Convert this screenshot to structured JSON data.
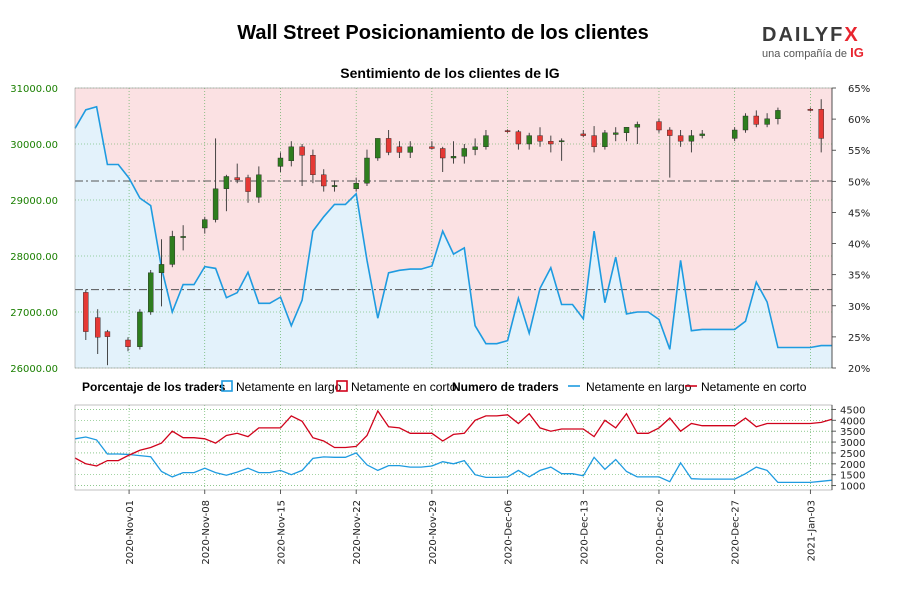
{
  "title": "Wall Street Posicionamiento de los clientes",
  "logo": {
    "brand_main": "DAILYF",
    "brand_x": "X",
    "tagline": "una compañía de",
    "tagline_brand": "IG"
  },
  "colors": {
    "price_axis": "#1a7f00",
    "long": "#1e9be0",
    "short": "#d0021b",
    "bg_long": "#e3f2fb",
    "bg_short": "#fbe1e3",
    "up_candle": "#2e7d1e",
    "down_candle": "#e53935",
    "wick": "#333333",
    "grid": "#4aa84a"
  },
  "chart_data": [
    {
      "type": "candlestick",
      "title": "Sentimiento de los clientes de IG",
      "y_left_ticks": [
        "26000.00",
        "27000.00",
        "28000.00",
        "29000.00",
        "30000.00",
        "31000.00"
      ],
      "y_left_range": [
        26000,
        31000
      ],
      "y_right_ticks": [
        "20%",
        "25%",
        "30%",
        "35%",
        "40%",
        "45%",
        "50%",
        "55%",
        "60%",
        "65%"
      ],
      "y_right_range": [
        20,
        65
      ],
      "x_tick_labels": [
        "2020-Nov-01",
        "2020-Nov-08",
        "2020-Nov-15",
        "2020-Nov-22",
        "2020-Nov-29",
        "2020-Dec-06",
        "2020-Dec-13",
        "2020-Dec-20",
        "2020-Dec-27",
        "2021-Jan-03"
      ],
      "x_tick_days": [
        5,
        12,
        19,
        26,
        33,
        40,
        47,
        54,
        61,
        68
      ],
      "reference_lines_price": [
        29340,
        27400
      ],
      "grid": true,
      "candles": [
        {
          "d": 1.0,
          "o": 27350,
          "h": 27400,
          "l": 26500,
          "c": 26650
        },
        {
          "d": 2.1,
          "o": 26900,
          "h": 27050,
          "l": 26250,
          "c": 26550
        },
        {
          "d": 3.0,
          "o": 26650,
          "h": 26680,
          "l": 26050,
          "c": 26560
        },
        {
          "d": 4.9,
          "o": 26500,
          "h": 26550,
          "l": 26300,
          "c": 26380
        },
        {
          "d": 6.0,
          "o": 26380,
          "h": 27050,
          "l": 26330,
          "c": 27000
        },
        {
          "d": 7.0,
          "o": 27000,
          "h": 27750,
          "l": 26950,
          "c": 27700
        },
        {
          "d": 8.0,
          "o": 27700,
          "h": 28300,
          "l": 27100,
          "c": 27850
        },
        {
          "d": 9.0,
          "o": 27850,
          "h": 28450,
          "l": 27800,
          "c": 28350
        },
        {
          "d": 10.0,
          "o": 28350,
          "h": 28550,
          "l": 28100,
          "c": 28350
        },
        {
          "d": 12.0,
          "o": 28500,
          "h": 28700,
          "l": 28400,
          "c": 28650
        },
        {
          "d": 13.0,
          "o": 28650,
          "h": 30100,
          "l": 28600,
          "c": 29200
        },
        {
          "d": 14.0,
          "o": 29200,
          "h": 29450,
          "l": 28800,
          "c": 29420
        },
        {
          "d": 15.0,
          "o": 29400,
          "h": 29650,
          "l": 29300,
          "c": 29360
        },
        {
          "d": 16.0,
          "o": 29400,
          "h": 29450,
          "l": 28950,
          "c": 29150
        },
        {
          "d": 17.0,
          "o": 29050,
          "h": 29600,
          "l": 28950,
          "c": 29450
        },
        {
          "d": 19.0,
          "o": 29600,
          "h": 29850,
          "l": 29500,
          "c": 29750
        },
        {
          "d": 20.0,
          "o": 29700,
          "h": 30050,
          "l": 29600,
          "c": 29950
        },
        {
          "d": 21.0,
          "o": 29950,
          "h": 30000,
          "l": 29250,
          "c": 29800
        },
        {
          "d": 22.0,
          "o": 29800,
          "h": 29900,
          "l": 29300,
          "c": 29450
        },
        {
          "d": 23.0,
          "o": 29450,
          "h": 29550,
          "l": 29150,
          "c": 29250
        },
        {
          "d": 24.0,
          "o": 29250,
          "h": 29350,
          "l": 29150,
          "c": 29260
        },
        {
          "d": 26.0,
          "o": 29200,
          "h": 29400,
          "l": 29150,
          "c": 29300
        },
        {
          "d": 27.0,
          "o": 29300,
          "h": 29900,
          "l": 29250,
          "c": 29750
        },
        {
          "d": 28.0,
          "o": 29750,
          "h": 30100,
          "l": 29700,
          "c": 30100
        },
        {
          "d": 29.0,
          "o": 30100,
          "h": 30250,
          "l": 29800,
          "c": 29850
        },
        {
          "d": 30.0,
          "o": 29950,
          "h": 30050,
          "l": 29750,
          "c": 29850
        },
        {
          "d": 31.0,
          "o": 29850,
          "h": 30050,
          "l": 29750,
          "c": 29950
        },
        {
          "d": 33.0,
          "o": 29950,
          "h": 30050,
          "l": 29900,
          "c": 29920
        },
        {
          "d": 34.0,
          "o": 29920,
          "h": 29950,
          "l": 29500,
          "c": 29750
        },
        {
          "d": 35.0,
          "o": 29750,
          "h": 30050,
          "l": 29650,
          "c": 29780
        },
        {
          "d": 36.0,
          "o": 29780,
          "h": 30000,
          "l": 29650,
          "c": 29920
        },
        {
          "d": 37.0,
          "o": 29900,
          "h": 30100,
          "l": 29800,
          "c": 29950
        },
        {
          "d": 38.0,
          "o": 29950,
          "h": 30250,
          "l": 29900,
          "c": 30150
        },
        {
          "d": 40.0,
          "o": 30240,
          "h": 30260,
          "l": 30200,
          "c": 30230
        },
        {
          "d": 41.0,
          "o": 30220,
          "h": 30250,
          "l": 29900,
          "c": 30000
        },
        {
          "d": 42.0,
          "o": 30000,
          "h": 30200,
          "l": 29900,
          "c": 30150
        },
        {
          "d": 43.0,
          "o": 30150,
          "h": 30300,
          "l": 29950,
          "c": 30050
        },
        {
          "d": 44.0,
          "o": 30050,
          "h": 30150,
          "l": 29850,
          "c": 30000
        },
        {
          "d": 45.0,
          "o": 30050,
          "h": 30100,
          "l": 29700,
          "c": 30060
        },
        {
          "d": 47.0,
          "o": 30180,
          "h": 30250,
          "l": 30120,
          "c": 30150
        },
        {
          "d": 48.0,
          "o": 30150,
          "h": 30320,
          "l": 29850,
          "c": 29950
        },
        {
          "d": 49.0,
          "o": 29950,
          "h": 30250,
          "l": 29900,
          "c": 30200
        },
        {
          "d": 50.0,
          "o": 30170,
          "h": 30300,
          "l": 30050,
          "c": 30200
        },
        {
          "d": 51.0,
          "o": 30200,
          "h": 30300,
          "l": 30050,
          "c": 30300
        },
        {
          "d": 52.0,
          "o": 30300,
          "h": 30400,
          "l": 30000,
          "c": 30350
        },
        {
          "d": 54.0,
          "o": 30400,
          "h": 30450,
          "l": 30200,
          "c": 30250
        },
        {
          "d": 55.0,
          "o": 30250,
          "h": 30300,
          "l": 29400,
          "c": 30150
        },
        {
          "d": 56.0,
          "o": 30150,
          "h": 30250,
          "l": 29950,
          "c": 30050
        },
        {
          "d": 57.0,
          "o": 30050,
          "h": 30250,
          "l": 29850,
          "c": 30150
        },
        {
          "d": 58.0,
          "o": 30150,
          "h": 30250,
          "l": 30100,
          "c": 30180
        },
        {
          "d": 61.0,
          "o": 30100,
          "h": 30300,
          "l": 30050,
          "c": 30250
        },
        {
          "d": 62.0,
          "o": 30250,
          "h": 30550,
          "l": 30200,
          "c": 30500
        },
        {
          "d": 63.0,
          "o": 30500,
          "h": 30600,
          "l": 30300,
          "c": 30350
        },
        {
          "d": 64.0,
          "o": 30350,
          "h": 30550,
          "l": 30300,
          "c": 30450
        },
        {
          "d": 65.0,
          "o": 30450,
          "h": 30650,
          "l": 30350,
          "c": 30600
        },
        {
          "d": 68.0,
          "o": 30620,
          "h": 30650,
          "l": 30580,
          "c": 30600
        },
        {
          "d": 69.0,
          "o": 30620,
          "h": 30800,
          "l": 29850,
          "c": 30100
        }
      ],
      "sentiment_series": {
        "name": "Netamente en largo",
        "x": [
          0,
          1,
          2,
          3,
          4,
          5,
          6,
          7,
          8,
          9,
          10,
          11,
          12,
          13,
          14,
          15,
          16,
          17,
          18,
          19,
          20,
          21,
          22,
          23,
          24,
          25,
          26,
          27,
          28,
          29,
          30,
          31,
          32,
          33,
          34,
          35,
          36,
          37,
          38,
          39,
          40,
          41,
          42,
          43,
          44,
          45,
          46,
          47,
          48,
          49,
          50,
          51,
          52,
          53,
          54,
          55,
          56,
          57,
          58,
          59,
          60,
          61,
          62,
          63,
          64,
          65,
          66,
          67,
          68,
          69,
          70
        ],
        "y": [
          58.5,
          61.5,
          62.0,
          52.7,
          52.7,
          50.5,
          47.3,
          46.1,
          36.1,
          29.0,
          33.4,
          33.4,
          36.3,
          36.0,
          31.3,
          32.1,
          35.4,
          30.4,
          30.4,
          31.4,
          26.8,
          30.9,
          42.0,
          44.3,
          46.3,
          46.3,
          48.0,
          37.3,
          28.0,
          35.3,
          35.7,
          35.9,
          35.9,
          36.4,
          42.0,
          38.3,
          39.3,
          26.8,
          23.9,
          23.9,
          24.4,
          31.2,
          25.6,
          32.8,
          36.1,
          30.2,
          30.2,
          27.9,
          42.0,
          30.5,
          37.8,
          28.7,
          29.0,
          29.0,
          27.8,
          23.0,
          37.3,
          26.0,
          26.2,
          26.2,
          26.2,
          26.2,
          27.5,
          33.8,
          30.6,
          23.3,
          23.3,
          23.3,
          23.3,
          23.6,
          23.6
        ]
      }
    },
    {
      "type": "line",
      "legend_percent_title": "Porcentaje de los traders",
      "legend_number_title": "Numero de traders",
      "y_ticks": [
        "1000",
        "1500",
        "2000",
        "2500",
        "3000",
        "3500",
        "4000",
        "4500"
      ],
      "y_range": [
        800,
        4700
      ],
      "series": [
        {
          "name": "Netamente en largo",
          "x": [
            0,
            1,
            2,
            3,
            4,
            5,
            6,
            7,
            8,
            9,
            10,
            11,
            12,
            13,
            14,
            15,
            16,
            17,
            18,
            19,
            20,
            21,
            22,
            23,
            24,
            25,
            26,
            27,
            28,
            29,
            30,
            31,
            32,
            33,
            34,
            35,
            36,
            37,
            38,
            39,
            40,
            41,
            42,
            43,
            44,
            45,
            46,
            47,
            48,
            49,
            50,
            51,
            52,
            53,
            54,
            55,
            56,
            57,
            58,
            59,
            60,
            61,
            62,
            63,
            64,
            65,
            66,
            67,
            68,
            69,
            70
          ],
          "y": [
            3150,
            3230,
            3100,
            2450,
            2450,
            2430,
            2380,
            2330,
            1650,
            1400,
            1600,
            1600,
            1800,
            1600,
            1480,
            1620,
            1800,
            1600,
            1600,
            1700,
            1500,
            1700,
            2250,
            2320,
            2300,
            2300,
            2500,
            1950,
            1700,
            1920,
            1920,
            1850,
            1850,
            1900,
            2100,
            2000,
            2150,
            1500,
            1380,
            1380,
            1400,
            1700,
            1400,
            1700,
            1850,
            1550,
            1550,
            1450,
            2300,
            1750,
            2200,
            1650,
            1400,
            1400,
            1400,
            1180,
            2050,
            1320,
            1300,
            1300,
            1300,
            1300,
            1550,
            1850,
            1700,
            1150,
            1150,
            1150,
            1150,
            1200,
            1250
          ]
        },
        {
          "name": "Netamente en corto",
          "x": [
            0,
            1,
            2,
            3,
            4,
            5,
            6,
            7,
            8,
            9,
            10,
            11,
            12,
            13,
            14,
            15,
            16,
            17,
            18,
            19,
            20,
            21,
            22,
            23,
            24,
            25,
            26,
            27,
            28,
            29,
            30,
            31,
            32,
            33,
            34,
            35,
            36,
            37,
            38,
            39,
            40,
            41,
            42,
            43,
            44,
            45,
            46,
            47,
            48,
            49,
            50,
            51,
            52,
            53,
            54,
            55,
            56,
            57,
            58,
            59,
            60,
            61,
            62,
            63,
            64,
            65,
            66,
            67,
            68,
            69,
            70
          ],
          "y": [
            2270,
            2000,
            1900,
            2150,
            2150,
            2400,
            2620,
            2750,
            2950,
            3500,
            3200,
            3200,
            3150,
            2950,
            3300,
            3400,
            3250,
            3650,
            3650,
            3650,
            4200,
            3950,
            3200,
            3050,
            2750,
            2750,
            2800,
            3300,
            4430,
            3700,
            3650,
            3400,
            3400,
            3400,
            3050,
            3350,
            3400,
            4000,
            4200,
            4200,
            4250,
            3850,
            4300,
            3650,
            3500,
            3600,
            3600,
            3600,
            3250,
            4000,
            3650,
            4300,
            3400,
            3400,
            3650,
            4100,
            3500,
            3850,
            3750,
            3750,
            3750,
            3750,
            4100,
            3700,
            3850,
            3850,
            3850,
            3850,
            3850,
            3900,
            4050
          ]
        }
      ]
    }
  ]
}
